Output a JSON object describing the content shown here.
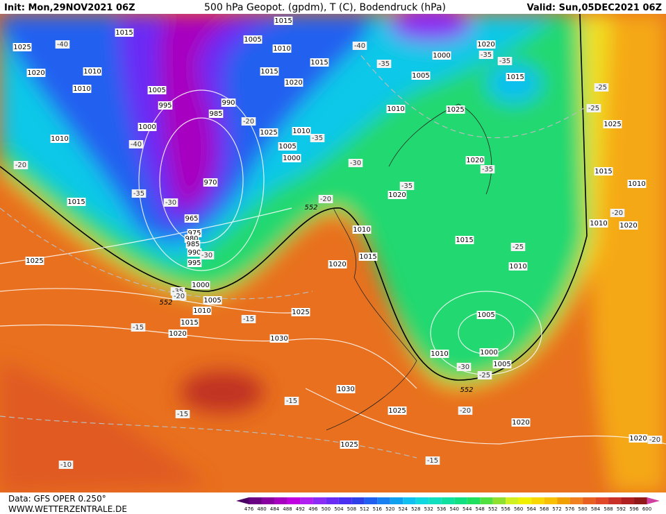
{
  "header": {
    "init": "Init: Mon,29NOV2021 06Z",
    "title": "500 hPa Geopot. (gpdm), T (C), Bodendruck (hPa)",
    "valid": "Valid: Sun,05DEC2021 06Z"
  },
  "footer": {
    "data": "Data: GFS OPER 0.250°",
    "site": "WWW.WETTERZENTRALE.DE"
  },
  "colorbar": {
    "levels": [
      476,
      480,
      484,
      488,
      492,
      496,
      500,
      504,
      508,
      512,
      516,
      520,
      524,
      528,
      532,
      536,
      540,
      544,
      548,
      552,
      556,
      560,
      564,
      568,
      572,
      576,
      580,
      584,
      588,
      592,
      596,
      600
    ],
    "colors": [
      "#4b0063",
      "#6a0082",
      "#8a00a0",
      "#a800c0",
      "#c000e0",
      "#b020f0",
      "#8a2cf5",
      "#6a2cf5",
      "#4a30f0",
      "#3040e8",
      "#2060f0",
      "#1880f0",
      "#10a0f0",
      "#10c0f0",
      "#10d8e0",
      "#10e0c0",
      "#10e0a0",
      "#10e080",
      "#20e060",
      "#50e040",
      "#90e030",
      "#d0f020",
      "#f0f000",
      "#f8d800",
      "#f8c000",
      "#f0a000",
      "#f08020",
      "#e86020",
      "#e04828",
      "#c83028",
      "#b02020",
      "#901818",
      "#d040a0"
    ]
  },
  "pressure_labels": [
    1015,
    1025,
    1020,
    1010,
    1010,
    1005,
    995,
    1000,
    1010,
    1015,
    1025,
    970,
    965,
    975,
    980,
    985,
    990,
    995,
    1000,
    1005,
    1010,
    1015,
    1020,
    1025,
    1030,
    1030,
    1025,
    1025,
    1020,
    1020,
    1015,
    1005,
    1010,
    1015,
    1015,
    1020,
    990,
    985,
    1025,
    1010,
    1005,
    1000,
    1000,
    1005,
    1020,
    1015,
    1010,
    1025,
    1025,
    1020,
    1015,
    1010,
    1020,
    1010,
    1015,
    1020,
    1015,
    1010,
    1010,
    1020,
    1005,
    1000,
    1005,
    1010
  ],
  "temperature_labels": [
    -40,
    -40,
    -35,
    -35,
    -35,
    -25,
    -25,
    -20,
    -40,
    -35,
    -30,
    -20,
    -35,
    -30,
    -35,
    -35,
    -20,
    -25,
    -20,
    -30,
    -35,
    -20,
    -15,
    -15,
    -30,
    -25,
    -20,
    -15,
    -15,
    -15,
    -10,
    -20
  ],
  "contour_labels": [
    552,
    552,
    552
  ]
}
